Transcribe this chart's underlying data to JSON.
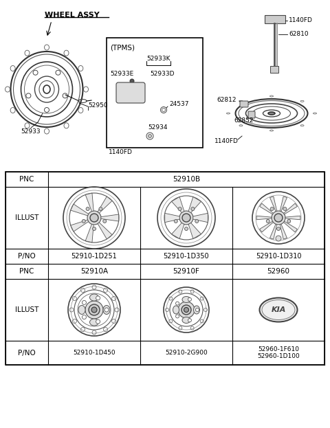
{
  "background_color": "#ffffff",
  "title": "WHEEL ASSY",
  "table": {
    "row1_pnc": "PNC",
    "row1_val": "52910B",
    "row3_vals": [
      "52910-1D251",
      "52910-1D350",
      "52910-1D310"
    ],
    "row4_vals": [
      "52910A",
      "52910F",
      "52960"
    ],
    "row6_vals": [
      "52910-1D450",
      "52910-2G900",
      "52960-1F610\n52960-1D100"
    ]
  },
  "labels": {
    "52950": "52950",
    "52933": "52933",
    "tpms": "(TPMS)",
    "52933K": "52933K",
    "52933E": "52933E",
    "52933D": "52933D",
    "24537": "24537",
    "52934": "52934",
    "1140FD_btm": "1140FD",
    "1140FD_top": "1140FD",
    "62810": "62810",
    "62812": "62812",
    "62852": "62852"
  }
}
